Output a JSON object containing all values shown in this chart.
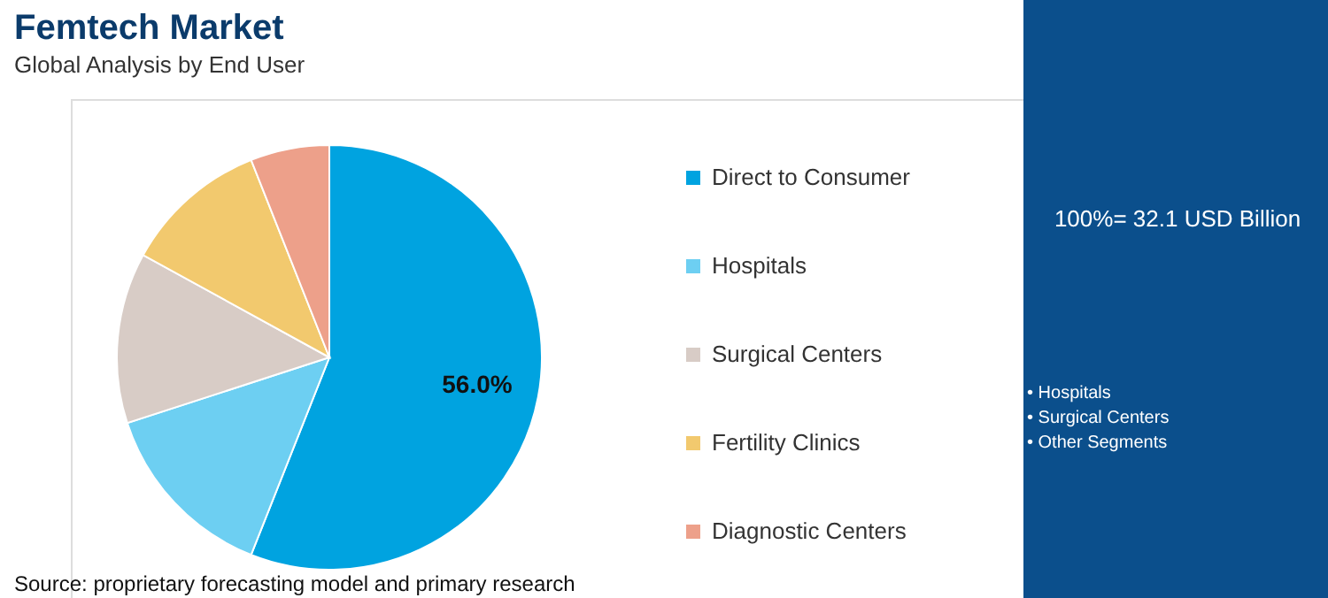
{
  "chart_data": {
    "type": "pie",
    "title": "Femtech Market",
    "subtitle": "Global Analysis by End User",
    "categories": [
      "Direct to Consumer",
      "Hospitals",
      "Surgical Centers",
      "Fertility Clinics",
      "Diagnostic Centers"
    ],
    "values": [
      56.0,
      14,
      13,
      11,
      6
    ],
    "colors": [
      "#00a3e0",
      "#6dcff2",
      "#d8ccc6",
      "#f2c96e",
      "#eda08a"
    ],
    "value_labels": [
      "56.0%",
      null,
      null,
      null,
      null
    ],
    "legend": "right",
    "annotations": [
      "Source: proprietary forecasting model and primary research",
      "100%= 32.1 USD Billion",
      "• Hospitals",
      "• Surgical Centers",
      "• Other Segments"
    ]
  }
}
